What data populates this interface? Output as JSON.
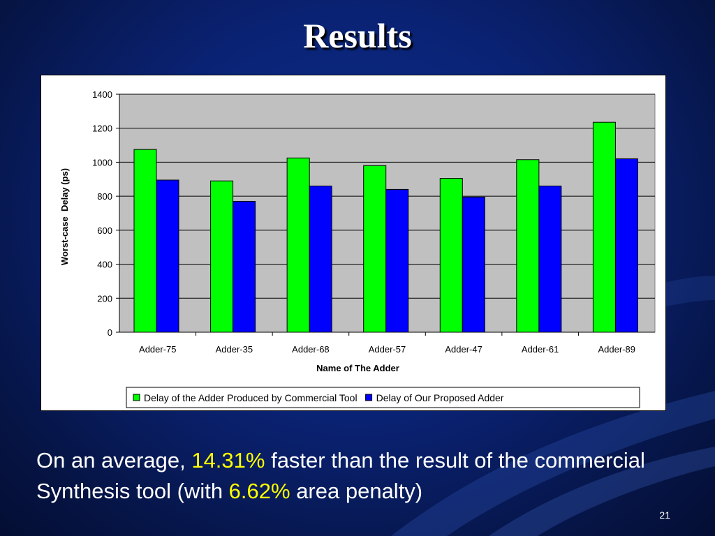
{
  "slide": {
    "title": "Results",
    "body_part1": "On an average, ",
    "highlight1": "14.31%",
    "body_part2": " faster than the result of the commercial Synthesis tool (with ",
    "highlight2": "6.62%",
    "body_part3": " area penalty)",
    "page_number": "21",
    "colors": {
      "background": "#0a2273",
      "highlight": "#ffff00",
      "text": "#ffffff"
    }
  },
  "chart_data": {
    "type": "bar",
    "categories": [
      "Adder-75",
      "Adder-35",
      "Adder-68",
      "Adder-57",
      "Adder-47",
      "Adder-61",
      "Adder-89"
    ],
    "series": [
      {
        "name": "Delay of the Adder Produced by Commercial Tool",
        "values": [
          1075,
          890,
          1025,
          980,
          905,
          1015,
          1235
        ],
        "color": "#00ff00"
      },
      {
        "name": "Delay of Our Proposed Adder",
        "values": [
          895,
          770,
          860,
          840,
          795,
          860,
          1020
        ],
        "color": "#0000ff"
      }
    ],
    "title": "",
    "xlabel": "Name of The Adder",
    "ylabel": "Worst-case  Delay (ps)",
    "ylim": [
      0,
      1400
    ],
    "yticks": [
      0,
      200,
      400,
      600,
      800,
      1000,
      1200,
      1400
    ],
    "grid": true,
    "plot_background": "#c0c0c0",
    "legend_position": "bottom"
  }
}
